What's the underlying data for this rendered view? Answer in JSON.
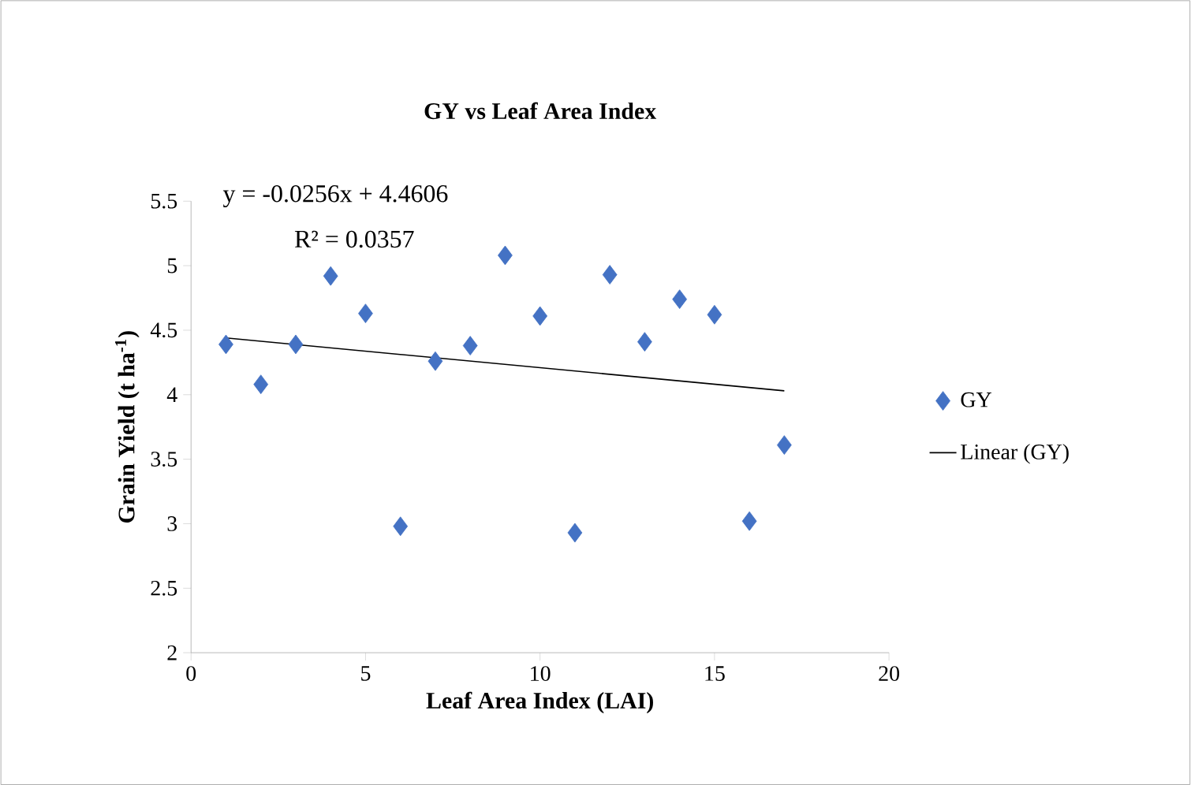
{
  "chart_data": {
    "type": "scatter",
    "title": "GY vs Leaf Area Index",
    "xlabel": "Leaf Area Index (LAI)",
    "ylabel": "Grain Yield (t ha$^{-1}$)",
    "xlim": [
      0,
      20
    ],
    "ylim": [
      2,
      5.5
    ],
    "xticks": [
      0,
      5,
      10,
      15,
      20
    ],
    "yticks": [
      2,
      2.5,
      3,
      3.5,
      4,
      4.5,
      5,
      5.5
    ],
    "grid": false,
    "legend": "right",
    "series": [
      {
        "name": "GY",
        "type": "scatter",
        "marker": "diamond",
        "color": "#4472c4",
        "x": [
          1,
          2,
          3,
          4,
          5,
          6,
          7,
          8,
          9,
          10,
          11,
          12,
          13,
          14,
          15,
          16,
          17
        ],
        "values": [
          4.39,
          4.08,
          4.39,
          4.92,
          4.63,
          2.98,
          4.26,
          4.38,
          5.08,
          4.61,
          2.93,
          4.93,
          4.41,
          4.74,
          4.62,
          3.02,
          3.61
        ]
      },
      {
        "name": "Linear (GY)",
        "type": "line",
        "marker": "none",
        "line_style": "solid",
        "color": "#000000",
        "x": [
          1,
          17
        ],
        "values": [
          4.44,
          4.03
        ]
      }
    ],
    "annotations": [
      "y = -0.0256x + 4.4606",
      "R² = 0.0357"
    ]
  }
}
